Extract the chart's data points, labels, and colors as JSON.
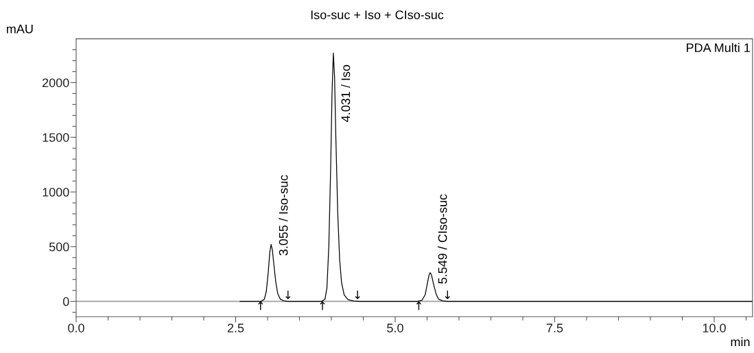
{
  "chart_data": {
    "type": "line",
    "title": "Iso-suc + Iso + CIso-suc",
    "xlabel": "min",
    "ylabel": "mAU",
    "xlim": [
      0,
      10.6
    ],
    "ylim": [
      -140,
      2400
    ],
    "xticks": [
      {
        "value": 0,
        "label": "0.0"
      },
      {
        "value": 0.5,
        "label": null
      },
      {
        "value": 1.0,
        "label": null
      },
      {
        "value": 1.5,
        "label": null
      },
      {
        "value": 2.0,
        "label": null
      },
      {
        "value": 2.5,
        "label": "2.5"
      },
      {
        "value": 3.0,
        "label": null
      },
      {
        "value": 3.5,
        "label": null
      },
      {
        "value": 4.0,
        "label": null
      },
      {
        "value": 4.5,
        "label": null
      },
      {
        "value": 5.0,
        "label": "5.0"
      },
      {
        "value": 5.5,
        "label": null
      },
      {
        "value": 6.0,
        "label": null
      },
      {
        "value": 6.5,
        "label": null
      },
      {
        "value": 7.0,
        "label": null
      },
      {
        "value": 7.5,
        "label": "7.5"
      },
      {
        "value": 8.0,
        "label": null
      },
      {
        "value": 8.5,
        "label": null
      },
      {
        "value": 9.0,
        "label": null
      },
      {
        "value": 9.5,
        "label": null
      },
      {
        "value": 10.0,
        "label": "10.0"
      },
      {
        "value": 10.5,
        "label": null
      }
    ],
    "yticks": [
      {
        "value": -100,
        "label": null
      },
      0,
      {
        "value": 100,
        "label": null
      },
      {
        "value": 200,
        "label": null
      },
      {
        "value": 300,
        "label": null
      },
      {
        "value": 400,
        "label": null
      },
      500,
      {
        "value": 600,
        "label": null
      },
      {
        "value": 700,
        "label": null
      },
      {
        "value": 800,
        "label": null
      },
      {
        "value": 900,
        "label": null
      },
      1000,
      {
        "value": 1100,
        "label": null
      },
      {
        "value": 1200,
        "label": null
      },
      {
        "value": 1300,
        "label": null
      },
      {
        "value": 1400,
        "label": null
      },
      1500,
      {
        "value": 1600,
        "label": null
      },
      {
        "value": 1700,
        "label": null
      },
      {
        "value": 1800,
        "label": null
      },
      {
        "value": 1900,
        "label": null
      },
      2000,
      {
        "value": 2100,
        "label": null
      },
      {
        "value": 2200,
        "label": null
      },
      {
        "value": 2300,
        "label": null
      }
    ],
    "grid": false,
    "legend": false,
    "ref_lines": [
      {
        "axis": "y",
        "value": 0,
        "color": "#a0a0a0"
      }
    ],
    "series": [
      {
        "color": "#000000",
        "x": [
          2.57,
          2.9,
          2.95,
          2.98,
          3.01,
          3.035,
          3.055,
          3.075,
          3.1,
          3.13,
          3.16,
          3.2,
          3.25,
          3.32,
          3.85,
          3.9,
          3.93,
          3.96,
          3.99,
          4.01,
          4.031,
          4.05,
          4.07,
          4.1,
          4.13,
          4.16,
          4.2,
          4.26,
          4.35,
          4.45,
          5.35,
          5.42,
          5.47,
          5.5,
          5.53,
          5.549,
          5.57,
          5.6,
          5.64,
          5.68,
          5.74,
          5.82,
          10.6
        ],
        "values": [
          0,
          0,
          20,
          90,
          260,
          450,
          520,
          470,
          330,
          170,
          70,
          20,
          5,
          0,
          0,
          20,
          120,
          500,
          1250,
          1900,
          2270,
          2050,
          1500,
          800,
          380,
          170,
          60,
          15,
          3,
          0,
          0,
          10,
          60,
          150,
          240,
          262,
          240,
          160,
          70,
          20,
          5,
          0,
          0
        ]
      }
    ],
    "annotations": [
      {
        "text": "3.055 / Iso-suc",
        "x": 3.055,
        "y": 520
      },
      {
        "text": "4.031 / Iso",
        "x": 4.031,
        "y": 2270
      },
      {
        "text": "5.549 / CIso-suc",
        "x": 5.549,
        "y": 262
      },
      {
        "text": "↑",
        "x": 2.89,
        "y": 0
      },
      {
        "text": "↑",
        "x": 3.86,
        "y": 0
      },
      {
        "text": "↑",
        "x": 5.37,
        "y": 0
      },
      {
        "text": "↓",
        "x": 3.32,
        "y": 0
      },
      {
        "text": "↓",
        "x": 4.41,
        "y": 0
      },
      {
        "text": "↓",
        "x": 5.82,
        "y": 0
      },
      "PDA Multi 1"
    ]
  }
}
